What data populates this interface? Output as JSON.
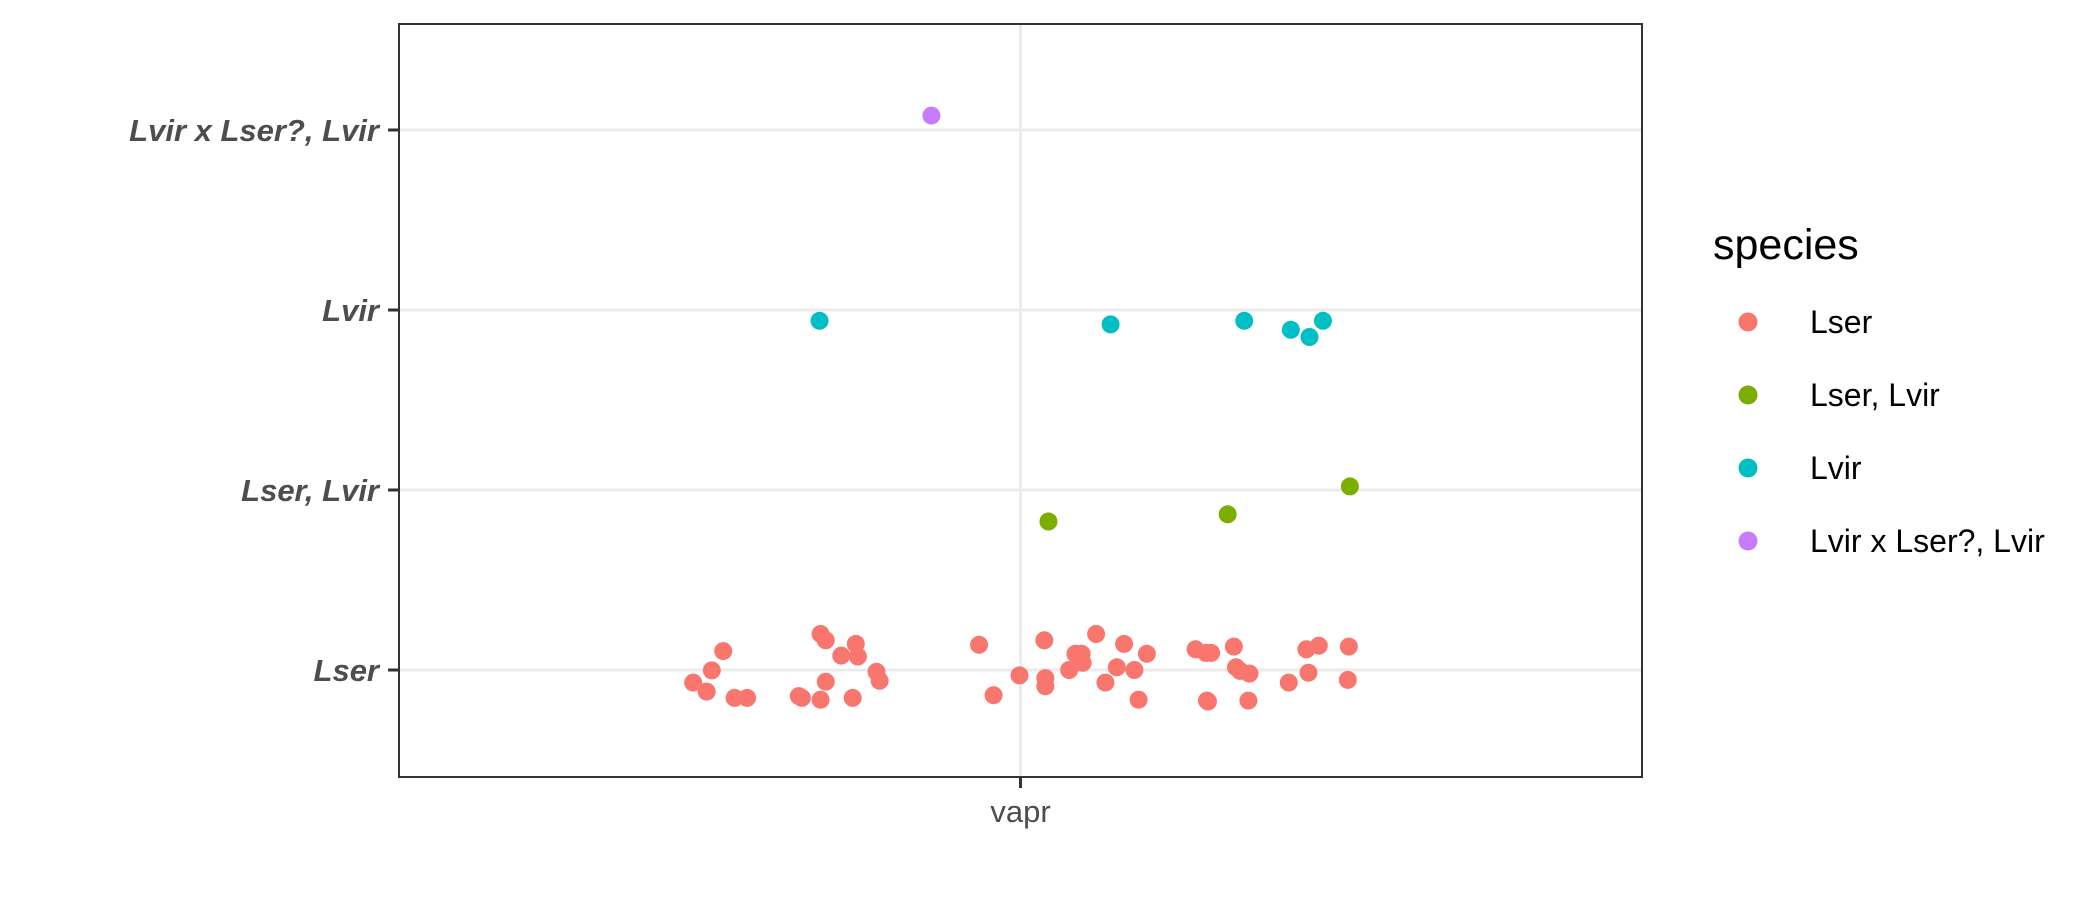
{
  "chart_data": {
    "type": "scatter",
    "title": "",
    "xlabel": "",
    "ylabel": "",
    "categories_x": [
      "vapr"
    ],
    "categories_y": [
      "Lser",
      "Lser, Lvir",
      "Lvir",
      "Lvir x Lser?, Lvir"
    ],
    "grid": true,
    "legend": {
      "title": "species",
      "position": "right"
    },
    "colors": {
      "Lser": "#F8766D",
      "Lser, Lvir": "#7CAE00",
      "Lvir": "#00BFC4",
      "Lvir x Lser?, Lvir": "#C77CFF"
    },
    "series": [
      {
        "name": "Lser",
        "points": [
          [
            -0.316,
            -0.07
          ],
          [
            -0.303,
            -0.12
          ],
          [
            -0.298,
            -0.002
          ],
          [
            -0.287,
            0.105
          ],
          [
            -0.276,
            -0.155
          ],
          [
            -0.264,
            -0.155
          ],
          [
            -0.214,
            -0.145
          ],
          [
            -0.211,
            -0.155
          ],
          [
            -0.193,
            0.2
          ],
          [
            -0.193,
            -0.165
          ],
          [
            -0.188,
            0.165
          ],
          [
            -0.188,
            -0.065
          ],
          [
            -0.173,
            0.08
          ],
          [
            -0.162,
            -0.155
          ],
          [
            -0.159,
            0.145
          ],
          [
            -0.157,
            0.075
          ],
          [
            -0.139,
            -0.01
          ],
          [
            -0.136,
            -0.06
          ],
          [
            -0.04,
            0.14
          ],
          [
            -0.026,
            -0.14
          ],
          [
            -0.001,
            -0.03
          ],
          [
            0.023,
            0.165
          ],
          [
            0.024,
            -0.045
          ],
          [
            0.024,
            -0.09
          ],
          [
            0.047,
            0.0
          ],
          [
            0.053,
            0.09
          ],
          [
            0.059,
            0.09
          ],
          [
            0.06,
            0.04
          ],
          [
            0.073,
            0.2
          ],
          [
            0.082,
            -0.07
          ],
          [
            0.093,
            0.015
          ],
          [
            0.1,
            0.145
          ],
          [
            0.11,
            0.0
          ],
          [
            0.114,
            -0.165
          ],
          [
            0.122,
            0.09
          ],
          [
            0.169,
            0.115
          ],
          [
            0.179,
            0.095
          ],
          [
            0.184,
            0.095
          ],
          [
            0.18,
            -0.17
          ],
          [
            0.181,
            -0.175
          ],
          [
            0.206,
            0.13
          ],
          [
            0.208,
            0.015
          ],
          [
            0.212,
            -0.005
          ],
          [
            0.221,
            -0.02
          ],
          [
            0.22,
            -0.17
          ],
          [
            0.259,
            -0.07
          ],
          [
            0.276,
            0.115
          ],
          [
            0.278,
            -0.015
          ],
          [
            0.288,
            0.135
          ],
          [
            0.316,
            -0.055
          ],
          [
            0.317,
            0.13
          ]
        ]
      },
      {
        "name": "Lser, Lvir",
        "points": [
          [
            0.027,
            -0.175
          ],
          [
            0.2,
            -0.135
          ],
          [
            0.318,
            0.02
          ]
        ]
      },
      {
        "name": "Lvir",
        "points": [
          [
            -0.194,
            -0.06
          ],
          [
            0.087,
            -0.08
          ],
          [
            0.216,
            -0.06
          ],
          [
            0.261,
            -0.11
          ],
          [
            0.279,
            -0.15
          ],
          [
            0.292,
            -0.06
          ]
        ]
      },
      {
        "name": "Lvir x Lser?, Lvir",
        "points": [
          [
            -0.086,
            0.08
          ]
        ]
      }
    ]
  }
}
